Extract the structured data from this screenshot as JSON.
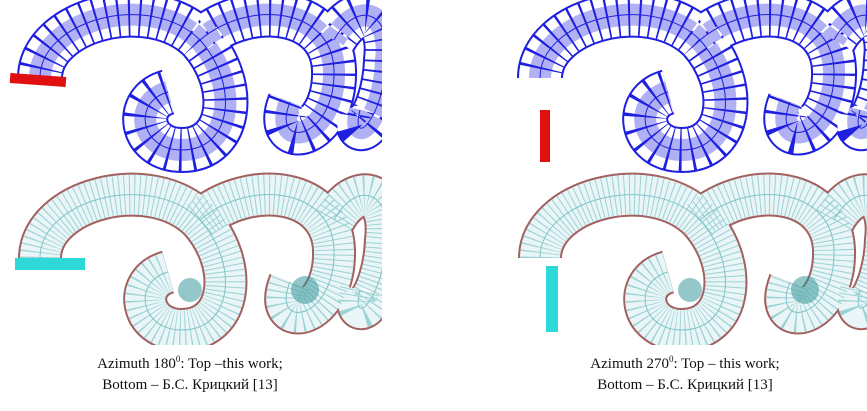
{
  "panels": [
    {
      "caption": {
        "line1": {
          "prefix": "Azimuth 180",
          "superscript": "0",
          "suffix": ": Top –this work;"
        },
        "line2": "Bottom – Б.С. Крицкий [13]"
      }
    },
    {
      "caption": {
        "line1": {
          "prefix": "Azimuth 270",
          "superscript": "0",
          "suffix": ": Top – this work;"
        },
        "line2": "Bottom – Б.С. Крицкий [13]"
      }
    }
  ]
}
